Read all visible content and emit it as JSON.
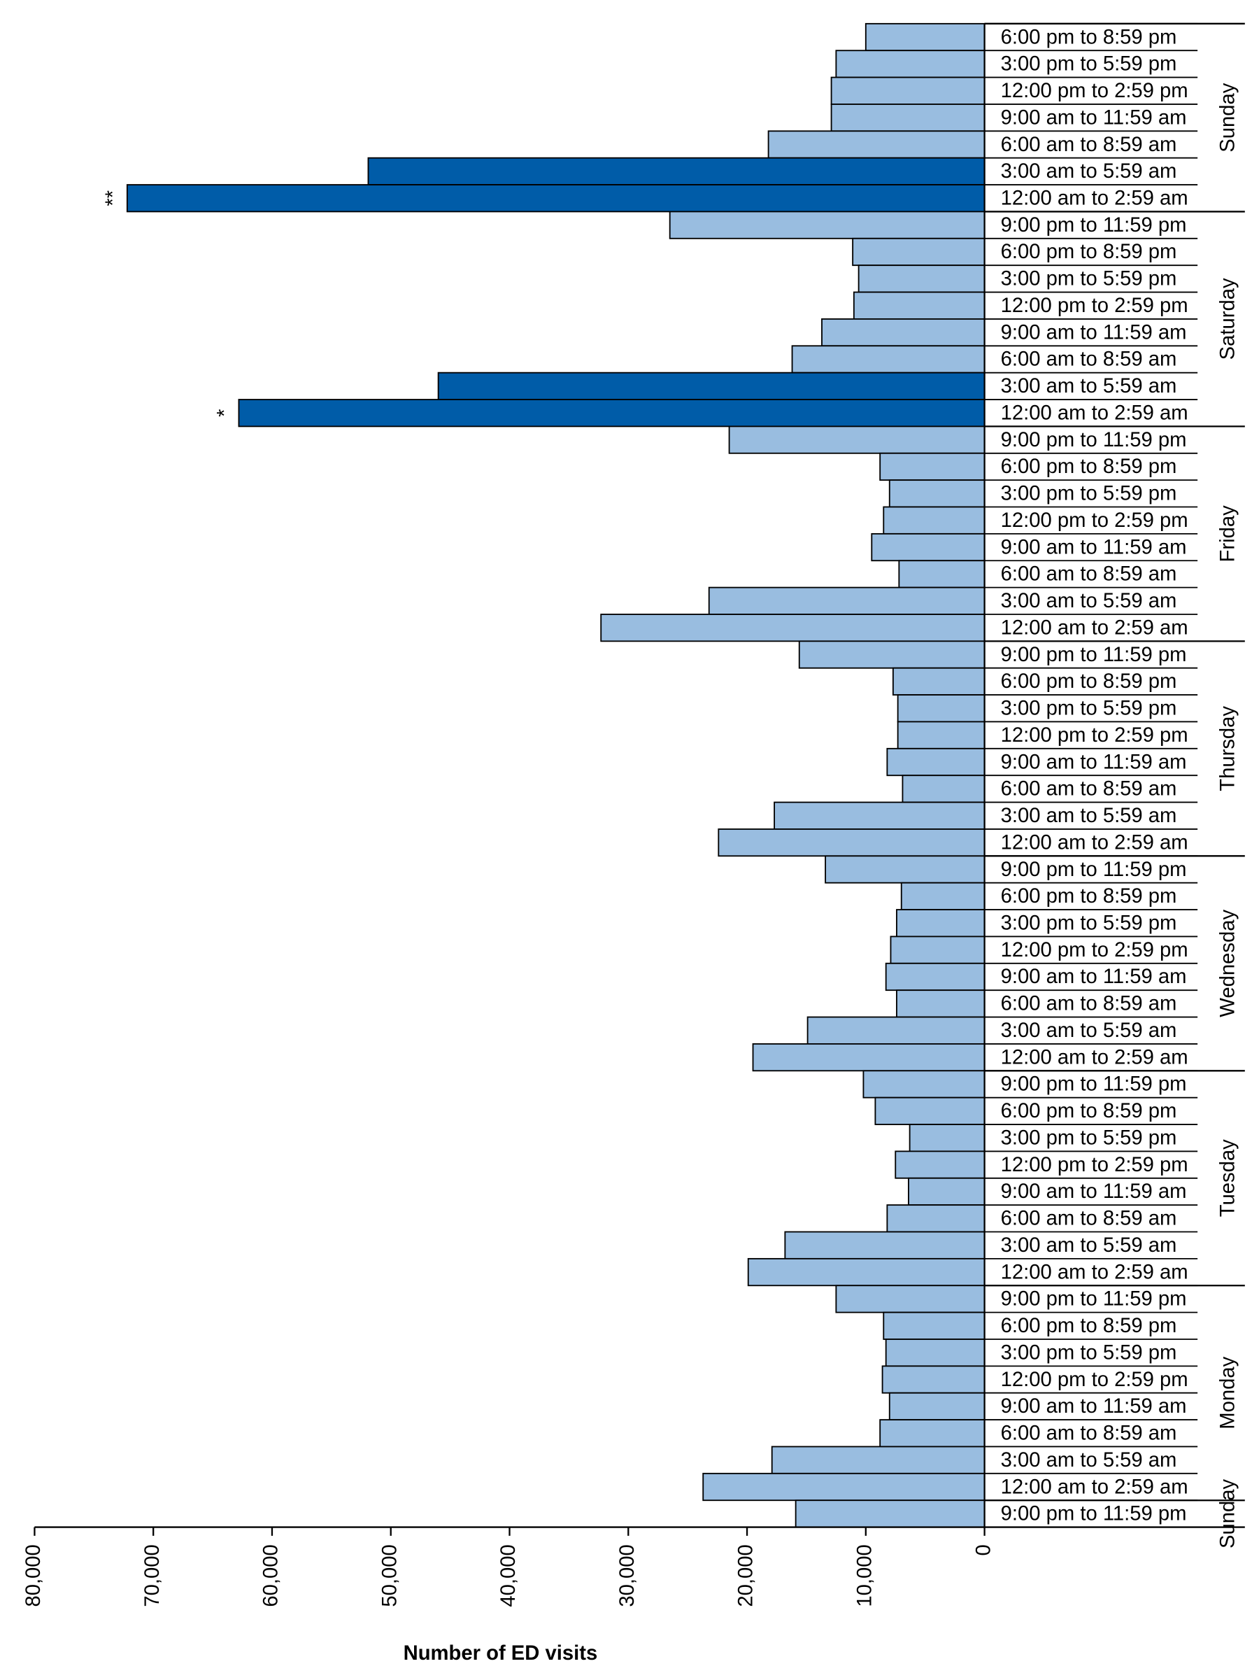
{
  "chart_data": {
    "type": "bar",
    "orientation": "horizontal",
    "x_label": "Number of ED visits",
    "color": "#99bde0",
    "highlight_color": "#005ca8",
    "xlim": [
      0,
      80000
    ],
    "xticks": [
      0,
      {
        "value": 10000,
        "label": "10,000"
      },
      {
        "value": 20000,
        "label": "20,000"
      },
      {
        "value": 30000,
        "label": "30,000"
      },
      {
        "value": 40000,
        "label": "40,000"
      },
      {
        "value": 50000,
        "label": "50,000"
      },
      {
        "value": 60000,
        "label": "60,000"
      },
      {
        "value": 70000,
        "label": "70,000"
      },
      {
        "value": 80000,
        "label": "80,000"
      }
    ],
    "groups": [
      {
        "name": "Sunday",
        "categories": [
          "6:00 pm to 8:59 pm",
          "3:00 pm to 5:59 pm",
          "12:00 pm to 2:59 pm",
          "9:00 am to 11:59 am",
          "6:00 am to 8:59 am",
          "3:00 am to 5:59 am",
          "12:00 am to 2:59 am"
        ],
        "values": [
          10000,
          12500,
          12900,
          12900,
          18200,
          51900,
          72200
        ],
        "highlighted": [
          5,
          6
        ],
        "annotations": [
          {
            "index": 6,
            "text": "**"
          }
        ]
      },
      {
        "name": "Saturday",
        "categories": [
          "9:00 pm to 11:59 pm",
          "6:00 pm to 8:59 pm",
          "3:00 pm to 5:59 pm",
          "12:00 pm to 2:59 pm",
          "9:00 am to 11:59 am",
          "6:00 am to 8:59 am",
          "3:00 am to 5:59 am",
          "12:00 am to 2:59 am"
        ],
        "values": [
          26500,
          11100,
          10600,
          11000,
          13700,
          16200,
          46000,
          62800
        ],
        "highlighted": [
          6,
          7
        ],
        "annotations": [
          {
            "index": 7,
            "text": "*"
          }
        ]
      },
      {
        "name": "Friday",
        "categories": [
          "9:00 pm to 11:59 pm",
          "6:00 pm to 8:59 pm",
          "3:00 pm to 5:59 pm",
          "12:00 pm to 2:59 pm",
          "9:00 am to 11:59 am",
          "6:00 am to 8:59 am",
          "3:00 am to 5:59 am",
          "12:00 am to 2:59 am"
        ],
        "values": [
          21500,
          8800,
          8000,
          8500,
          9500,
          7200,
          23200,
          32300
        ]
      },
      {
        "name": "Thursday",
        "categories": [
          "9:00 pm to 11:59 pm",
          "6:00 pm to 8:59 pm",
          "3:00 pm to 5:59 pm",
          "12:00 pm to 2:59 pm",
          "9:00 am to 11:59 am",
          "6:00 am to 8:59 am",
          "3:00 am to 5:59 am",
          "12:00 am to 2:59 am"
        ],
        "values": [
          15600,
          7700,
          7300,
          7300,
          8200,
          6900,
          17700,
          22400
        ]
      },
      {
        "name": "Wednesday",
        "categories": [
          "9:00 pm to 11:59 pm",
          "6:00 pm to 8:59 pm",
          "3:00 pm to 5:59 pm",
          "12:00 pm to 2:59 pm",
          "9:00 am to 11:59 am",
          "6:00 am to 8:59 am",
          "3:00 am to 5:59 am",
          "12:00 am to 2:59 am"
        ],
        "values": [
          13400,
          7000,
          7400,
          7900,
          8300,
          7400,
          14900,
          19500
        ]
      },
      {
        "name": "Tuesday",
        "categories": [
          "9:00 pm to 11:59 pm",
          "6:00 pm to 8:59 pm",
          "3:00 pm to 5:59 pm",
          "12:00 pm to 2:59 pm",
          "9:00 am to 11:59 am",
          "6:00 am to 8:59 am",
          "3:00 am to 5:59 am",
          "12:00 am to 2:59 am"
        ],
        "values": [
          10200,
          9200,
          6300,
          7500,
          6400,
          8200,
          16800,
          19900
        ]
      },
      {
        "name": "Monday",
        "categories": [
          "9:00 pm to 11:59 pm",
          "6:00 pm to 8:59 pm",
          "3:00 pm to 5:59 pm",
          "12:00 pm to 2:59 pm",
          "9:00 am to 11:59 am",
          "6:00 am to 8:59 am",
          "3:00 am to 5:59 am",
          "12:00 am to 2:59 am"
        ],
        "values": [
          12500,
          8500,
          8300,
          8600,
          8000,
          8800,
          17900,
          23700
        ]
      },
      {
        "name": "Sunday",
        "categories": [
          "9:00 pm to 11:59 pm"
        ],
        "values": [
          15900
        ]
      }
    ]
  }
}
